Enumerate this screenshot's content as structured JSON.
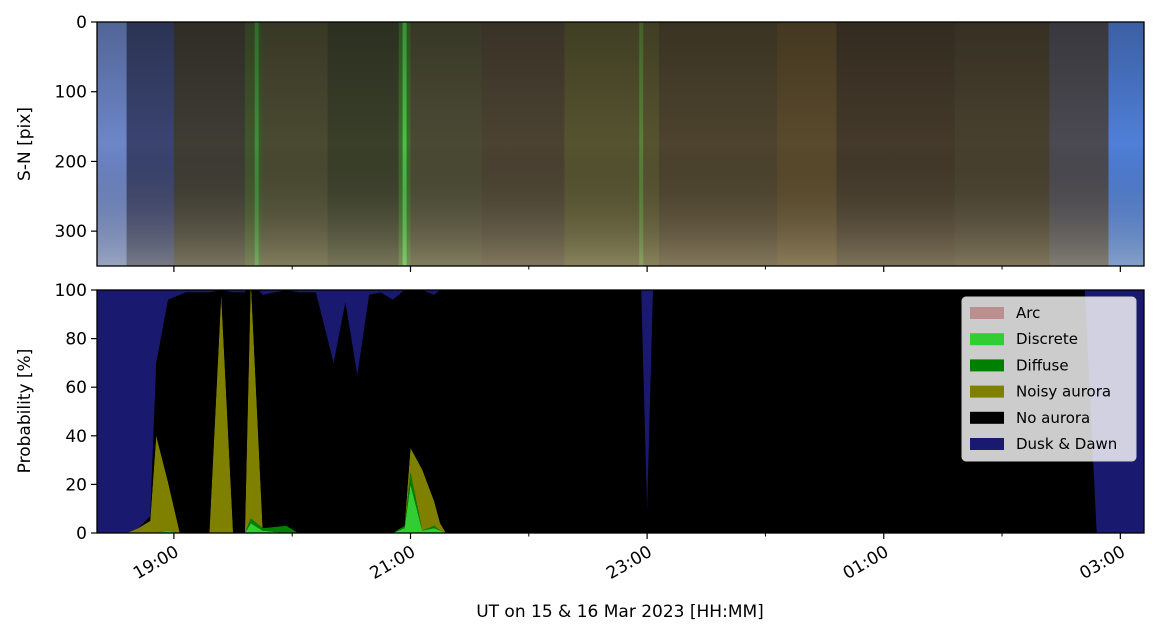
{
  "colors": {
    "arc": "#bc8f8f",
    "discrete": "#32cd32",
    "diffuse": "#008000",
    "noisy_aurora": "#808000",
    "no_aurora": "#000000",
    "dusk_dawn": "#191970"
  },
  "chart_data": [
    {
      "type": "heatmap",
      "panel": "keogram",
      "ylabel": "S-N [pix]",
      "ylim": [
        350,
        0
      ],
      "yticks": [
        0,
        100,
        200,
        300
      ],
      "xlim": [
        18.35,
        27.2
      ],
      "x_unit": "hours UT from 00:00 on 15 Mar 2023",
      "bands": [
        {
          "x0": 18.35,
          "x1": 18.6,
          "color": "#6d86c8"
        },
        {
          "x0": 18.6,
          "x1": 19.0,
          "color": "#3a4470"
        },
        {
          "x0": 19.0,
          "x1": 19.6,
          "color": "#3e3c33"
        },
        {
          "x0": 19.6,
          "x1": 19.75,
          "color": "#41552c"
        },
        {
          "x0": 19.75,
          "x1": 20.3,
          "color": "#4a4a32"
        },
        {
          "x0": 20.3,
          "x1": 20.9,
          "color": "#3a3f2a"
        },
        {
          "x0": 20.9,
          "x1": 21.0,
          "color": "#3f6b2c"
        },
        {
          "x0": 21.0,
          "x1": 21.6,
          "color": "#4a4a34"
        },
        {
          "x0": 21.6,
          "x1": 22.3,
          "color": "#4b4232"
        },
        {
          "x0": 22.3,
          "x1": 23.1,
          "color": "#55532f"
        },
        {
          "x0": 23.1,
          "x1": 24.1,
          "color": "#4d432e"
        },
        {
          "x0": 24.1,
          "x1": 24.6,
          "color": "#5a4a2c"
        },
        {
          "x0": 24.6,
          "x1": 25.6,
          "color": "#44392a"
        },
        {
          "x0": 25.6,
          "x1": 26.4,
          "color": "#48402f"
        },
        {
          "x0": 26.4,
          "x1": 26.9,
          "color": "#4b4a52"
        },
        {
          "x0": 26.9,
          "x1": 27.2,
          "color": "#4f7fd8"
        }
      ],
      "highlights": [
        {
          "x": 19.7,
          "color": "#3c9a3c"
        },
        {
          "x": 20.95,
          "color": "#4ad04a"
        },
        {
          "x": 22.95,
          "color": "#5b8a3a"
        }
      ]
    },
    {
      "type": "area",
      "panel": "classification",
      "ylabel": "Probability [%]",
      "xlabel": "UT on 15 & 16 Mar 2023 [HH:MM]",
      "ylim": [
        0,
        100
      ],
      "yticks": [
        0,
        20,
        40,
        60,
        80,
        100
      ],
      "xlim": [
        18.35,
        27.2
      ],
      "xticks": [
        {
          "x": 19.0,
          "label": "19:00"
        },
        {
          "x": 21.0,
          "label": "21:00"
        },
        {
          "x": 23.0,
          "label": "23:00"
        },
        {
          "x": 25.0,
          "label": "01:00"
        },
        {
          "x": 27.0,
          "label": "03:00"
        }
      ],
      "minor_xticks": [
        20.0,
        22.0,
        24.0,
        26.0
      ],
      "legend_position": "upper right",
      "legend": [
        "Arc",
        "Discrete",
        "Diffuse",
        "Noisy aurora",
        "No aurora",
        "Dusk & Dawn"
      ],
      "x": [
        18.35,
        18.6,
        18.7,
        18.8,
        18.85,
        18.95,
        19.05,
        19.1,
        19.3,
        19.4,
        19.5,
        19.6,
        19.65,
        19.75,
        19.95,
        20.05,
        20.2,
        20.35,
        20.45,
        20.55,
        20.65,
        20.75,
        20.85,
        20.95,
        21.0,
        21.1,
        21.2,
        21.25,
        21.3,
        22.95,
        23.0,
        23.05,
        26.6,
        26.7,
        26.8,
        27.2
      ],
      "series": [
        {
          "name": "Arc",
          "values": [
            0,
            0,
            0,
            0,
            0,
            0,
            0,
            0,
            0,
            0,
            0,
            0,
            0,
            0,
            0,
            0,
            0,
            0,
            0,
            0,
            0,
            0,
            0,
            0,
            0,
            0,
            0,
            0,
            0,
            0,
            0,
            0,
            0,
            0,
            0,
            0
          ]
        },
        {
          "name": "Discrete",
          "values": [
            0,
            0,
            0,
            0,
            0,
            1,
            0,
            0,
            0,
            0,
            0,
            0,
            4,
            1,
            0,
            0,
            0,
            0,
            0,
            0,
            0,
            0,
            0,
            2,
            20,
            1,
            2,
            1,
            0,
            0,
            0,
            0,
            0,
            0,
            0,
            0
          ]
        },
        {
          "name": "Diffuse",
          "values": [
            0,
            0,
            0,
            0,
            0,
            0,
            0,
            0,
            0,
            0,
            0,
            0,
            2,
            1,
            3,
            0,
            0,
            0,
            0,
            0,
            0,
            0,
            0,
            1,
            5,
            0,
            1,
            0,
            0,
            0,
            0,
            0,
            0,
            0,
            0,
            0
          ]
        },
        {
          "name": "Noisy aurora",
          "values": [
            0,
            0,
            2,
            5,
            40,
            20,
            0,
            0,
            0,
            98,
            0,
            0,
            98,
            0,
            0,
            0,
            0,
            0,
            0,
            0,
            0,
            0,
            0,
            0,
            10,
            25,
            10,
            3,
            0,
            0,
            0,
            0,
            0,
            0,
            0,
            0
          ]
        },
        {
          "name": "No aurora",
          "values": [
            0,
            0,
            0,
            2,
            30,
            75,
            98,
            99,
            99,
            2,
            99,
            99,
            0,
            96,
            97,
            99,
            99,
            70,
            95,
            65,
            98,
            99,
            96,
            97,
            65,
            74,
            85,
            96,
            100,
            100,
            10,
            100,
            100,
            100,
            0,
            0
          ]
        },
        {
          "name": "Dusk & Dawn",
          "values": [
            100,
            100,
            98,
            93,
            30,
            4,
            2,
            1,
            1,
            0,
            1,
            1,
            0,
            2,
            0,
            1,
            1,
            30,
            5,
            35,
            2,
            1,
            4,
            0,
            0,
            0,
            2,
            0,
            0,
            0,
            90,
            0,
            0,
            0,
            100,
            100
          ]
        }
      ]
    }
  ]
}
